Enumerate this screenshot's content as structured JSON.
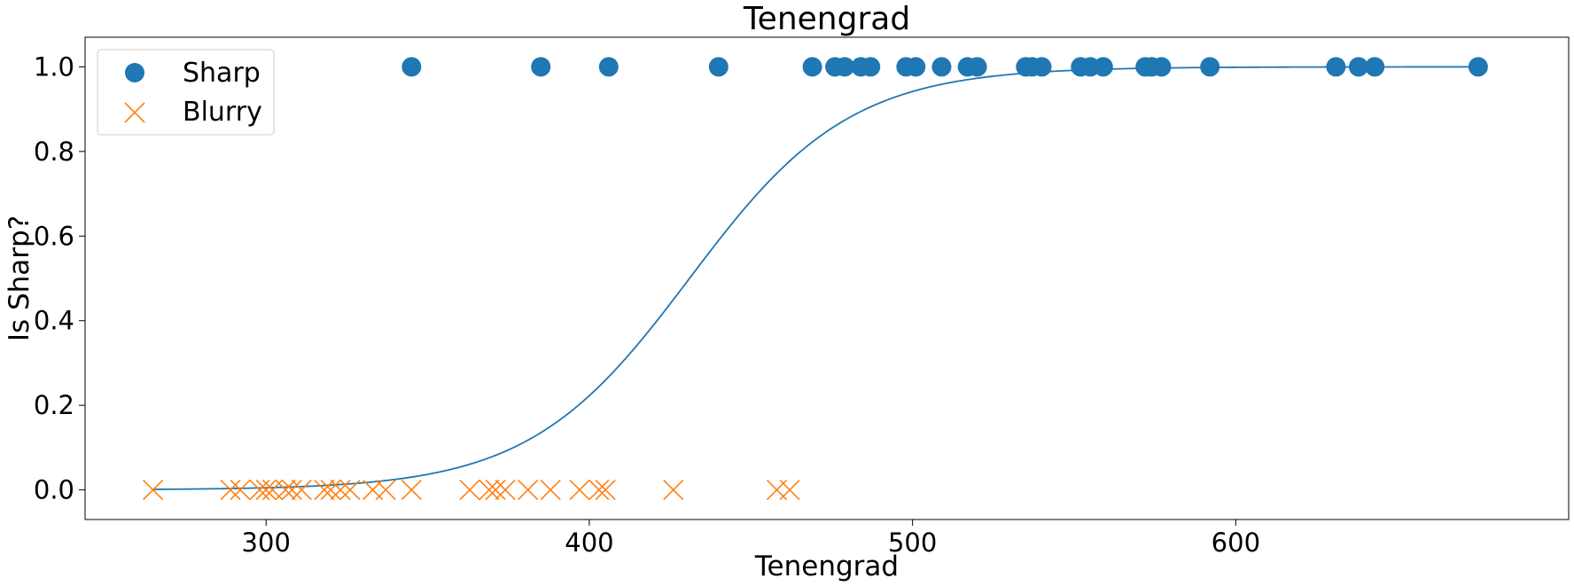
{
  "chart_data": {
    "type": "scatter",
    "title": "Tenengrad",
    "xlabel": "Tenengrad",
    "ylabel": "Is Sharp?",
    "xlim": [
      244,
      703
    ],
    "ylim": [
      -0.07,
      1.07
    ],
    "xticks": [
      300,
      400,
      500,
      600
    ],
    "yticks": [
      0.0,
      0.2,
      0.4,
      0.6,
      0.8,
      1.0
    ],
    "xtick_labels": [
      "300",
      "400",
      "500",
      "600"
    ],
    "ytick_labels": [
      "0.0",
      "0.2",
      "0.4",
      "0.6",
      "0.8",
      "1.0"
    ],
    "grid": false,
    "legend_position": "top-left",
    "series": [
      {
        "name": "Sharp",
        "marker": "circle",
        "color": "#1f77b4",
        "x": [
          345,
          385,
          406,
          440,
          469,
          476,
          479,
          484,
          487,
          498,
          501,
          509,
          517,
          520,
          535,
          537,
          540,
          552,
          555,
          559,
          572,
          574,
          577,
          592,
          631,
          638,
          643,
          675
        ],
        "y": [
          1,
          1,
          1,
          1,
          1,
          1,
          1,
          1,
          1,
          1,
          1,
          1,
          1,
          1,
          1,
          1,
          1,
          1,
          1,
          1,
          1,
          1,
          1,
          1,
          1,
          1,
          1,
          1
        ]
      },
      {
        "name": "Blurry",
        "marker": "x",
        "color": "#ff7f0e",
        "x": [
          265,
          289,
          292,
          298,
          300,
          302,
          306,
          308,
          311,
          318,
          320,
          323,
          326,
          333,
          337,
          345,
          363,
          369,
          371,
          374,
          381,
          388,
          397,
          403,
          405,
          426,
          458,
          462
        ],
        "y": [
          0,
          0,
          0,
          0,
          0,
          0,
          0,
          0,
          0,
          0,
          0,
          0,
          0,
          0,
          0,
          0,
          0,
          0,
          0,
          0,
          0,
          0,
          0,
          0,
          0,
          0,
          0,
          0
        ]
      }
    ],
    "curve": {
      "type": "logistic",
      "color": "#1f77b4",
      "center": 431,
      "scale": 24.8,
      "x_range": [
        265,
        675
      ]
    }
  }
}
